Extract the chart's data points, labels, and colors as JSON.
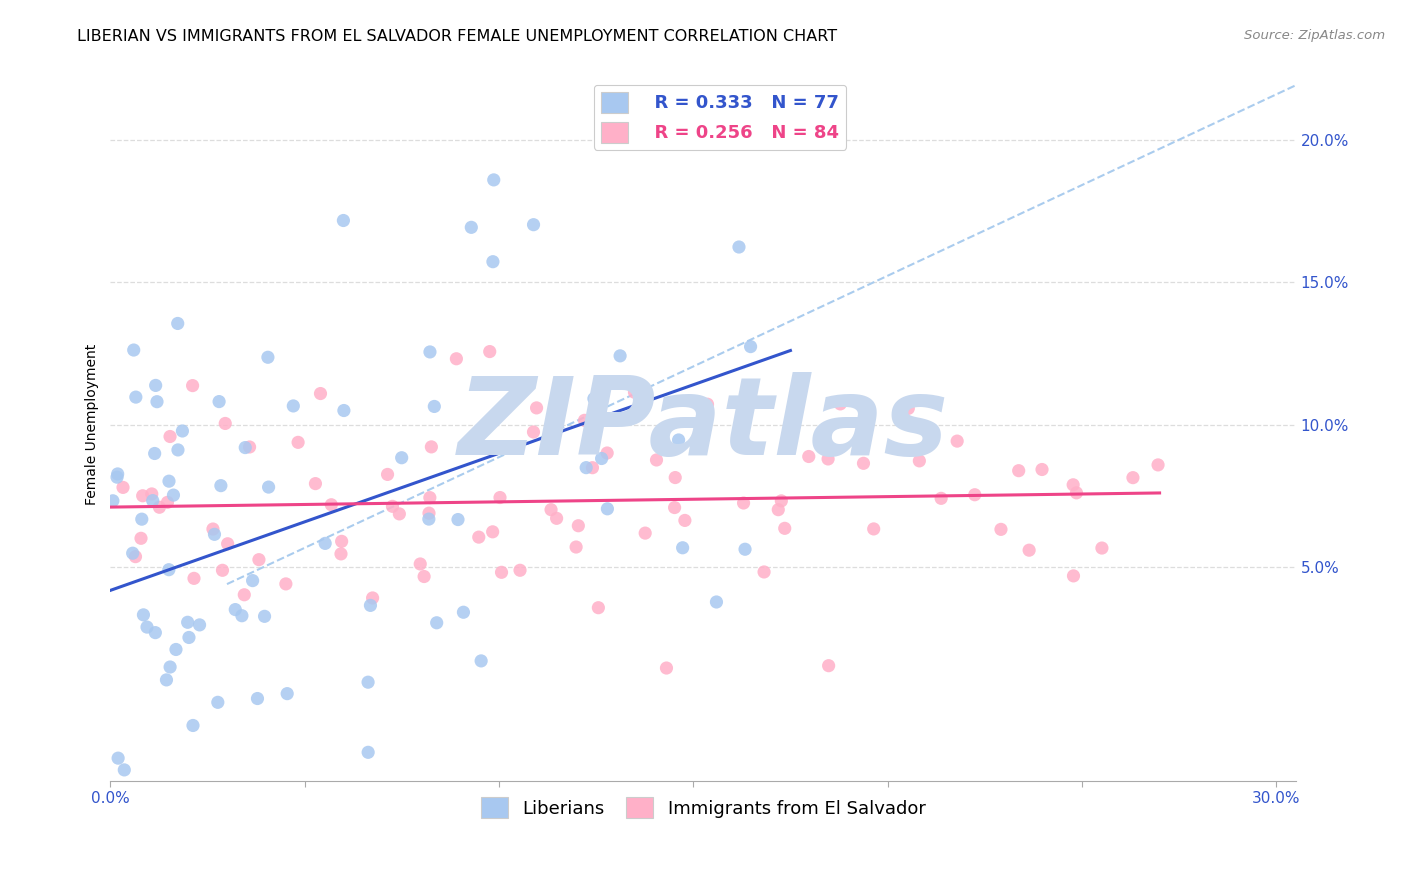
{
  "title": "LIBERIAN VS IMMIGRANTS FROM EL SALVADOR FEMALE UNEMPLOYMENT CORRELATION CHART",
  "source": "Source: ZipAtlas.com",
  "ylabel": "Female Unemployment",
  "right_yticks": [
    "5.0%",
    "10.0%",
    "15.0%",
    "20.0%"
  ],
  "right_ytick_vals": [
    0.05,
    0.1,
    0.15,
    0.2
  ],
  "legend_blue_r": "R = 0.333",
  "legend_blue_n": "N = 77",
  "legend_pink_r": "R = 0.256",
  "legend_pink_n": "N = 84",
  "blue_scatter_color": "#A8C8F0",
  "pink_scatter_color": "#FFB0C8",
  "blue_line_color": "#3355CC",
  "pink_line_color": "#EE4488",
  "dashed_line_color": "#AACCEE",
  "background_color": "#FFFFFF",
  "xlim": [
    0.0,
    0.305
  ],
  "ylim": [
    -0.025,
    0.225
  ],
  "blue_R": 0.333,
  "blue_N": 77,
  "pink_R": 0.256,
  "pink_N": 84,
  "watermark_text": "ZIPatlas",
  "watermark_color": "#C8D8EE",
  "title_fontsize": 11.5,
  "axis_label_fontsize": 10,
  "legend_fontsize": 13,
  "tick_fontsize": 11,
  "gridline_color": "#DDDDDD"
}
